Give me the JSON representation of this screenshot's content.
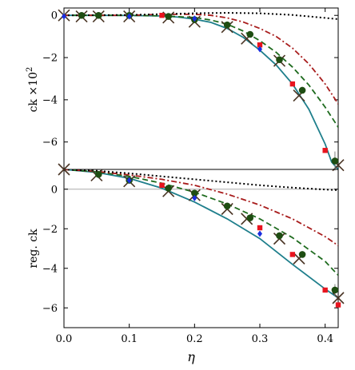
{
  "chart_data": [
    {
      "type": "scatter",
      "panel": "top",
      "ylabel_main": "ck ×10",
      "ylabel_sup": "2",
      "xlim": [
        0.0,
        0.42
      ],
      "ylim": [
        -7.3,
        0.35
      ],
      "yticks": [
        0,
        -2,
        -4,
        -6
      ],
      "ytick_labels": [
        "0",
        "−2",
        "−4",
        "−6"
      ],
      "grid": false,
      "curves": [
        {
          "style": "solid",
          "color": "#1f7f8c",
          "x": [
            0,
            0.05,
            0.1,
            0.15,
            0.175,
            0.2,
            0.225,
            0.25,
            0.275,
            0.3,
            0.325,
            0.35,
            0.375,
            0.4,
            0.41,
            0.42
          ],
          "y": [
            0,
            0,
            -0.005,
            -0.03,
            -0.08,
            -0.18,
            -0.33,
            -0.62,
            -1.05,
            -1.65,
            -2.35,
            -3.25,
            -4.45,
            -6.1,
            -6.95,
            -7.3
          ]
        },
        {
          "style": "dashed",
          "color": "#1e6b1e",
          "x": [
            0,
            0.05,
            0.1,
            0.15,
            0.2,
            0.225,
            0.25,
            0.275,
            0.3,
            0.325,
            0.35,
            0.375,
            0.4,
            0.42
          ],
          "y": [
            0,
            0,
            0,
            -0.02,
            -0.1,
            -0.22,
            -0.42,
            -0.75,
            -1.2,
            -1.75,
            -2.45,
            -3.3,
            -4.35,
            -5.3
          ]
        },
        {
          "style": "dashdot",
          "color": "#a81c1c",
          "x": [
            0,
            0.1,
            0.15,
            0.2,
            0.225,
            0.25,
            0.275,
            0.3,
            0.325,
            0.35,
            0.375,
            0.4,
            0.42
          ],
          "y": [
            0,
            0,
            0.05,
            0.05,
            0,
            -0.12,
            -0.32,
            -0.62,
            -1.0,
            -1.55,
            -2.3,
            -3.25,
            -4.2
          ]
        },
        {
          "style": "dotted",
          "color": "#000000",
          "x": [
            0,
            0.1,
            0.15,
            0.2,
            0.25,
            0.3,
            0.35,
            0.4,
            0.42
          ],
          "y": [
            0,
            0.02,
            0.06,
            0.1,
            0.12,
            0.1,
            0.02,
            -0.12,
            -0.18
          ]
        }
      ],
      "series": [
        {
          "marker": "cross",
          "color": "#4a3525",
          "x": [
            0.0,
            0.027,
            0.053,
            0.1,
            0.16,
            0.2,
            0.25,
            0.28,
            0.33,
            0.36,
            0.42
          ],
          "y": [
            0,
            -0.05,
            -0.05,
            -0.05,
            -0.1,
            -0.3,
            -0.55,
            -1.1,
            -2.15,
            -3.8,
            -7.1
          ]
        },
        {
          "marker": "circle",
          "color": "#1e4d12",
          "x": [
            0.027,
            0.053,
            0.1,
            0.16,
            0.2,
            0.25,
            0.285,
            0.33,
            0.365,
            0.415
          ],
          "y": [
            0,
            0,
            0,
            -0.05,
            -0.2,
            -0.45,
            -0.9,
            -2.1,
            -3.55,
            -6.9
          ],
          "yerr": [
            0,
            0,
            0,
            0,
            0,
            0,
            0,
            0,
            0,
            0.45
          ]
        },
        {
          "marker": "square",
          "color": "#e8141e",
          "x": [
            0.15,
            0.3,
            0.35,
            0.4
          ],
          "y": [
            0,
            -1.4,
            -3.25,
            -6.4
          ]
        },
        {
          "marker": "diamond",
          "color": "#1a2ee0",
          "x": [
            0.0,
            0.1,
            0.2,
            0.3
          ],
          "y": [
            -0.05,
            -0.05,
            -0.15,
            -1.6
          ]
        }
      ]
    },
    {
      "type": "scatter",
      "panel": "bottom",
      "ylabel_main": "reg. ck",
      "xlabel": "η",
      "xlim": [
        0.0,
        0.42
      ],
      "ylim": [
        -7.0,
        1.0
      ],
      "xticks": [
        0.0,
        0.1,
        0.2,
        0.3,
        0.4
      ],
      "xtick_labels": [
        "0.0",
        "0.1",
        "0.2",
        "0.3",
        "0.4"
      ],
      "yticks": [
        0,
        -2,
        -4,
        -6
      ],
      "ytick_labels": [
        "0",
        "−2",
        "−4",
        "−6"
      ],
      "reference_line_y": 0,
      "grid": false,
      "curves": [
        {
          "style": "solid",
          "color": "#1f7f8c",
          "x": [
            0,
            0.05,
            0.1,
            0.15,
            0.2,
            0.25,
            0.3,
            0.35,
            0.4,
            0.42
          ],
          "y": [
            1.0,
            0.85,
            0.55,
            0.05,
            -0.65,
            -1.5,
            -2.5,
            -3.8,
            -5.05,
            -5.5
          ]
        },
        {
          "style": "dashed",
          "color": "#1e6b1e",
          "x": [
            0,
            0.05,
            0.1,
            0.15,
            0.2,
            0.25,
            0.3,
            0.35,
            0.4,
            0.42
          ],
          "y": [
            1.0,
            0.88,
            0.65,
            0.3,
            -0.15,
            -0.75,
            -1.5,
            -2.45,
            -3.65,
            -4.35
          ]
        },
        {
          "style": "dashdot",
          "color": "#a81c1c",
          "x": [
            0,
            0.05,
            0.1,
            0.15,
            0.2,
            0.25,
            0.3,
            0.35,
            0.4,
            0.42
          ],
          "y": [
            1.0,
            0.9,
            0.72,
            0.5,
            0.2,
            -0.25,
            -0.8,
            -1.5,
            -2.4,
            -2.85
          ]
        },
        {
          "style": "dotted",
          "color": "#000000",
          "x": [
            0,
            0.05,
            0.1,
            0.15,
            0.2,
            0.25,
            0.3,
            0.35,
            0.4,
            0.42
          ],
          "y": [
            1.0,
            0.93,
            0.8,
            0.65,
            0.5,
            0.35,
            0.2,
            0.08,
            -0.02,
            -0.05
          ]
        }
      ],
      "series": [
        {
          "marker": "cross",
          "color": "#4a3525",
          "x": [
            0.0,
            0.05,
            0.1,
            0.16,
            0.2,
            0.25,
            0.28,
            0.33,
            0.36,
            0.42
          ],
          "y": [
            1.0,
            0.7,
            0.4,
            -0.1,
            -0.3,
            -1.0,
            -1.5,
            -2.5,
            -3.5,
            -5.5
          ]
        },
        {
          "marker": "circle",
          "color": "#1e4d12",
          "x": [
            0.053,
            0.1,
            0.16,
            0.2,
            0.25,
            0.285,
            0.33,
            0.365,
            0.415
          ],
          "y": [
            0.75,
            0.45,
            0.05,
            -0.2,
            -0.85,
            -1.45,
            -2.35,
            -3.3,
            -5.1
          ],
          "yerr": [
            0,
            0,
            0,
            0,
            0,
            0,
            0,
            0,
            0.3
          ]
        },
        {
          "marker": "square",
          "color": "#e8141e",
          "x": [
            0.15,
            0.3,
            0.35,
            0.4,
            0.42
          ],
          "y": [
            0.2,
            -1.95,
            -3.3,
            -5.1,
            -5.85
          ]
        },
        {
          "marker": "diamond",
          "color": "#1a2ee0",
          "x": [
            0.1,
            0.2,
            0.3
          ],
          "y": [
            0.45,
            -0.45,
            -2.25
          ]
        }
      ]
    }
  ]
}
